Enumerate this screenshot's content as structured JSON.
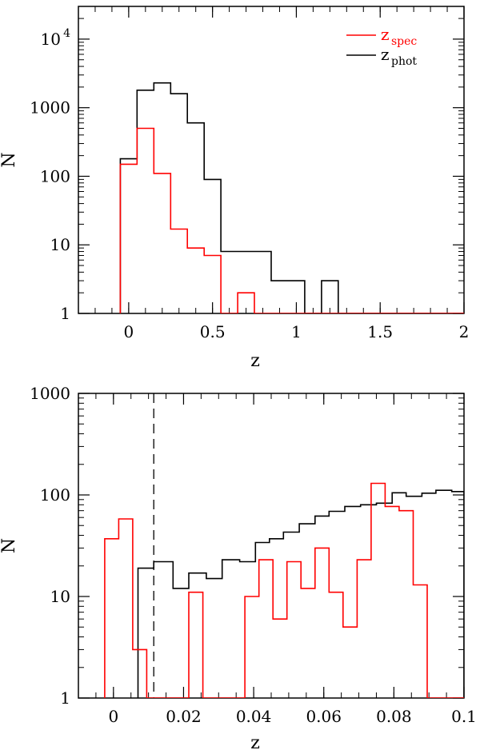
{
  "chart_data": [
    {
      "type": "step-histogram",
      "scale": "log",
      "xlabel": "z",
      "ylabel": "N",
      "xlim": [
        -0.3,
        2.0
      ],
      "ylim": [
        1,
        30000
      ],
      "x_ticks": [
        {
          "v": 0,
          "label": "0"
        },
        {
          "v": 0.5,
          "label": "0.5"
        },
        {
          "v": 1,
          "label": "1"
        },
        {
          "v": 1.5,
          "label": "1.5"
        },
        {
          "v": 2,
          "label": "2"
        }
      ],
      "y_ticks": [
        {
          "v": 1,
          "label": "1"
        },
        {
          "v": 10,
          "label": "10"
        },
        {
          "v": 100,
          "label": "100"
        },
        {
          "v": 1000,
          "label": "1000"
        },
        {
          "v": 10000,
          "label": "10",
          "sup": "4"
        }
      ],
      "legend": {
        "placement": "top-right",
        "entries": [
          {
            "text": "z",
            "sub": "spec",
            "color": "#ff0000"
          },
          {
            "text": "z",
            "sub": "phot",
            "color": "#000000"
          }
        ]
      },
      "series": [
        {
          "color": "#000000",
          "edges": [
            -0.05,
            0.05,
            0.15,
            0.25,
            0.35,
            0.45,
            0.55,
            0.65,
            0.75,
            0.85,
            0.95,
            1.05,
            1.15,
            1.25,
            1.35,
            1.45,
            1.55,
            1.65,
            1.75,
            1.85,
            1.95,
            2.0
          ],
          "values": [
            180,
            1800,
            2300,
            1600,
            600,
            90,
            8,
            8,
            8,
            3,
            3,
            1,
            3,
            1,
            1,
            1,
            1,
            1,
            1,
            1,
            1
          ]
        },
        {
          "color": "#ff0000",
          "edges": [
            -0.05,
            0.05,
            0.15,
            0.25,
            0.35,
            0.45,
            0.55,
            0.65,
            0.75,
            0.85,
            0.95,
            1.05,
            1.15,
            1.25,
            1.35,
            1.45,
            1.55,
            1.65,
            1.75,
            1.85,
            1.95,
            2.0
          ],
          "values": [
            150,
            500,
            110,
            17,
            9,
            7,
            1,
            2,
            1,
            1,
            1,
            1,
            1,
            1,
            1,
            1,
            1,
            1,
            1,
            1,
            1
          ]
        }
      ]
    },
    {
      "type": "step-histogram",
      "scale": "log",
      "xlabel": "z",
      "ylabel": "N",
      "xlim": [
        -0.01,
        0.1
      ],
      "ylim": [
        1,
        1000
      ],
      "x_ticks": [
        {
          "v": 0,
          "label": "0"
        },
        {
          "v": 0.02,
          "label": "0.02"
        },
        {
          "v": 0.04,
          "label": "0.04"
        },
        {
          "v": 0.06,
          "label": "0.06"
        },
        {
          "v": 0.08,
          "label": "0.08"
        },
        {
          "v": 0.1,
          "label": "0.1"
        }
      ],
      "y_ticks": [
        {
          "v": 1,
          "label": "1"
        },
        {
          "v": 10,
          "label": "10"
        },
        {
          "v": 100,
          "label": "100"
        },
        {
          "v": 1000,
          "label": "1000"
        }
      ],
      "vline": {
        "x": 0.0115,
        "style": "dashed",
        "color": "#000000"
      },
      "series": [
        {
          "color": "#000000",
          "edges": [
            0.007,
            0.0115,
            0.017,
            0.0215,
            0.0265,
            0.031,
            0.036,
            0.0405,
            0.0445,
            0.0485,
            0.053,
            0.0575,
            0.0615,
            0.066,
            0.0705,
            0.075,
            0.0795,
            0.0835,
            0.088,
            0.092,
            0.0965,
            0.1
          ],
          "values": [
            19,
            22,
            12,
            17,
            15,
            23,
            22,
            34,
            37,
            43,
            52,
            62,
            69,
            77,
            80,
            83,
            105,
            97,
            104,
            111,
            108
          ]
        },
        {
          "color": "#ff0000",
          "edges": [
            -0.0025,
            0.0015,
            0.0055,
            0.0095,
            0.0135,
            0.0175,
            0.0215,
            0.0255,
            0.0295,
            0.0335,
            0.0375,
            0.0415,
            0.0455,
            0.0495,
            0.0535,
            0.0575,
            0.0615,
            0.0655,
            0.0695,
            0.0735,
            0.0775,
            0.0815,
            0.0855,
            0.0895,
            0.0935,
            0.0975,
            0.1
          ],
          "values": [
            37,
            58,
            3,
            1,
            1,
            1,
            11,
            1,
            1,
            1,
            10,
            23,
            6,
            22,
            12,
            30,
            11,
            5,
            23,
            130,
            77,
            70,
            13,
            1,
            1,
            1
          ]
        }
      ]
    }
  ]
}
